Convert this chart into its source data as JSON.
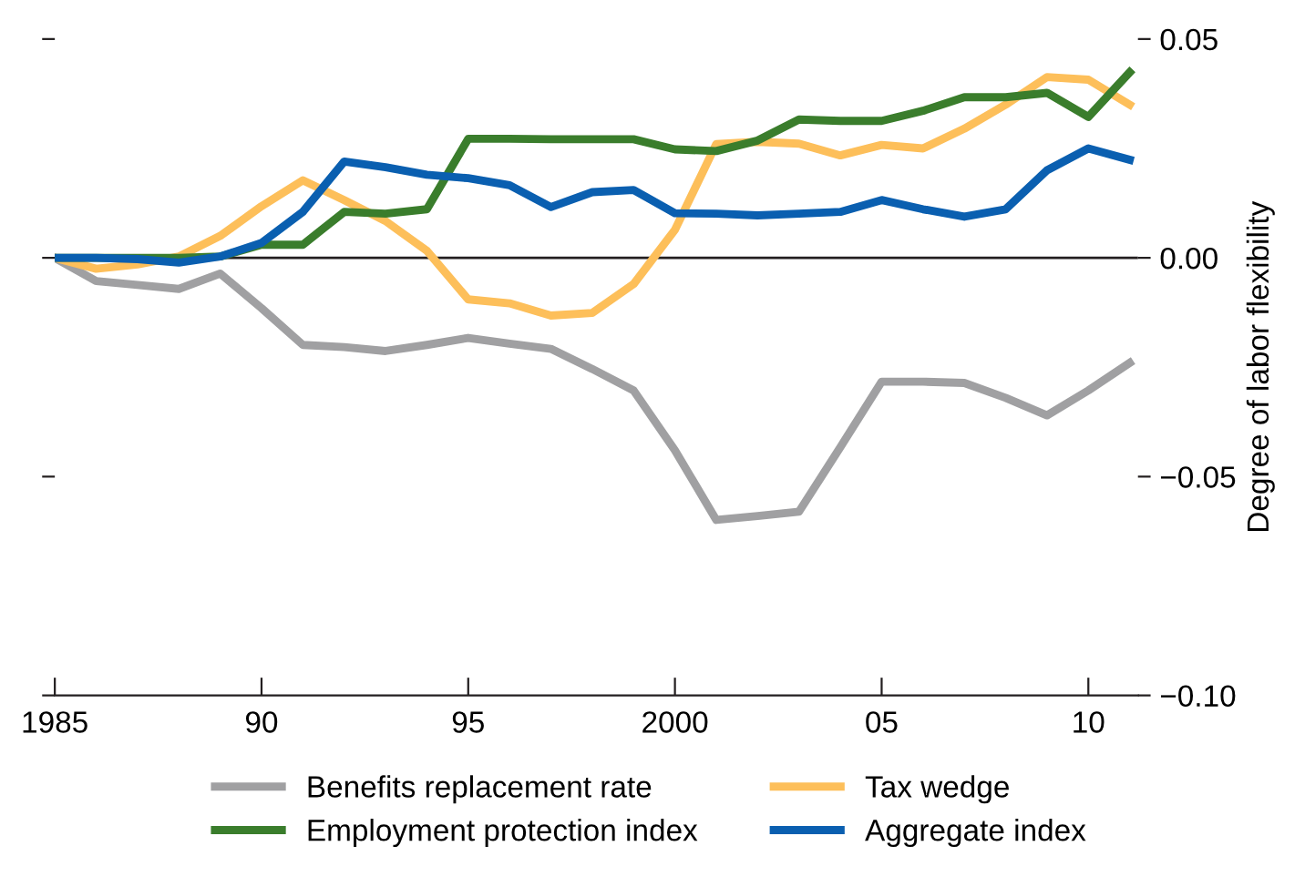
{
  "chart_data": {
    "type": "line",
    "ylabel": "Degree of labor flexibility",
    "x": [
      1985,
      1986,
      1987,
      1988,
      1989,
      1990,
      1991,
      1992,
      1993,
      1994,
      1995,
      1996,
      1997,
      1998,
      1999,
      2000,
      2001,
      2002,
      2003,
      2004,
      2005,
      2006,
      2007,
      2008,
      2009,
      2010,
      2011
    ],
    "series": [
      {
        "name": "Benefits replacement rate",
        "color": "#a0a0a2",
        "values": [
          0,
          -0.0053,
          -0.0062,
          -0.0071,
          -0.0036,
          -0.0115,
          -0.0199,
          -0.0204,
          -0.0213,
          -0.0199,
          -0.0183,
          -0.0196,
          -0.0208,
          -0.0254,
          -0.0303,
          -0.044,
          -0.0599,
          -0.059,
          -0.058,
          -0.0433,
          -0.0283,
          -0.0283,
          -0.0286,
          -0.032,
          -0.036,
          -0.0303,
          -0.024
        ]
      },
      {
        "name": "Tax wedge",
        "color": "#fdbf5a",
        "values": [
          0,
          -0.0025,
          -0.0015,
          0.0003,
          0.005,
          0.0118,
          0.0177,
          0.0132,
          0.0084,
          0.0016,
          -0.0095,
          -0.0104,
          -0.0132,
          -0.0126,
          -0.006,
          0.0064,
          0.026,
          0.0265,
          0.0261,
          0.0234,
          0.0258,
          0.025,
          0.0295,
          0.035,
          0.0413,
          0.0407,
          0.035
        ]
      },
      {
        "name": "Employment protection index",
        "color": "#3a7d2c",
        "values": [
          0,
          0,
          0,
          0,
          0.0003,
          0.003,
          0.003,
          0.0105,
          0.0101,
          0.0111,
          0.0272,
          0.0272,
          0.0271,
          0.0271,
          0.0271,
          0.0248,
          0.0244,
          0.0268,
          0.0316,
          0.0313,
          0.0313,
          0.0336,
          0.0367,
          0.0367,
          0.0377,
          0.0322,
          0.0424
        ]
      },
      {
        "name": "Aggregate index",
        "color": "#0a5fb0",
        "values": [
          0,
          0,
          -0.0003,
          -0.0011,
          0.0003,
          0.0034,
          0.0105,
          0.022,
          0.0207,
          0.019,
          0.0182,
          0.0166,
          0.0116,
          0.015,
          0.0155,
          0.0102,
          0.0101,
          0.0097,
          0.0101,
          0.0105,
          0.0132,
          0.0111,
          0.0094,
          0.0111,
          0.02,
          0.025,
          0.0224
        ]
      }
    ],
    "xlim": [
      1985,
      2011.2
    ],
    "xticks": [
      1985,
      {
        "value": 1990,
        "label": "90"
      },
      {
        "value": 1995,
        "label": "95"
      },
      2000,
      {
        "value": 2005,
        "label": "05"
      },
      {
        "value": 2010,
        "label": "10"
      }
    ],
    "ylim": [
      -0.1,
      0.05
    ],
    "yticks": [
      {
        "value": 0.05,
        "label": "0.05"
      },
      {
        "value": 0,
        "label": "0.00"
      },
      {
        "value": -0.05,
        "label": "−0.05"
      },
      {
        "value": -0.1,
        "label": "−0.10"
      }
    ],
    "ref_lines": [
      {
        "axis": "y",
        "value": 0,
        "color": "#231f20"
      }
    ],
    "grid": false,
    "legend": "bottom",
    "marker": "none",
    "line_style": "solid"
  }
}
